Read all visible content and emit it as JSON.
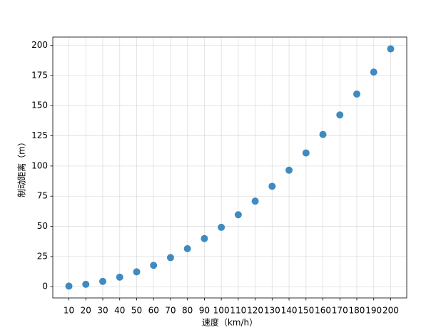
{
  "chart_data": {
    "type": "scatter",
    "x_label": "速度（km/h）",
    "y_label": "制动距离（m）",
    "x": [
      10,
      20,
      30,
      40,
      50,
      60,
      70,
      80,
      90,
      100,
      110,
      120,
      130,
      140,
      150,
      160,
      170,
      180,
      190,
      200
    ],
    "values": [
      0.5,
      2,
      4.4,
      7.9,
      12.3,
      17.7,
      24.1,
      31.5,
      39.9,
      49.2,
      59.6,
      70.9,
      83.2,
      96.5,
      110.8,
      126.1,
      142.3,
      159.6,
      177.8,
      197
    ],
    "color": "#1f77b4",
    "xlim": [
      0.5,
      209.5
    ],
    "ylim": [
      -9.3,
      206.8
    ],
    "xticks": [
      10,
      20,
      30,
      40,
      50,
      60,
      70,
      80,
      90,
      100,
      110,
      120,
      130,
      140,
      150,
      160,
      170,
      180,
      190,
      200
    ],
    "yticks": [
      0,
      25,
      50,
      75,
      100,
      125,
      150,
      175,
      200
    ],
    "grid": true
  }
}
